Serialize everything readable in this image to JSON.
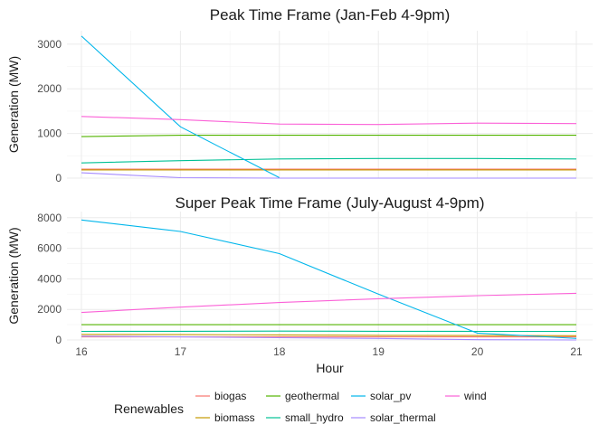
{
  "chart_data": [
    {
      "type": "line",
      "title": "Peak Time Frame (Jan-Feb 4-9pm)",
      "xlabel": "",
      "ylabel": "Generation (MW)",
      "xlim": [
        16,
        21
      ],
      "ylim": [
        0,
        3300
      ],
      "yticks": [
        0,
        1000,
        2000,
        3000
      ],
      "show_x_tick_labels": false,
      "grid": true,
      "series": [
        {
          "name": "biogas",
          "x": [
            16,
            17,
            18,
            19,
            20,
            21
          ],
          "values": [
            200,
            200,
            200,
            200,
            200,
            200
          ]
        },
        {
          "name": "biomass",
          "x": [
            16,
            17,
            18,
            19,
            20,
            21
          ],
          "values": [
            185,
            185,
            185,
            185,
            185,
            185
          ]
        },
        {
          "name": "geothermal",
          "x": [
            16,
            17,
            18,
            19,
            20,
            21
          ],
          "values": [
            930,
            960,
            960,
            960,
            960,
            960
          ]
        },
        {
          "name": "small_hydro",
          "x": [
            16,
            17,
            18,
            19,
            20,
            21
          ],
          "values": [
            340,
            390,
            430,
            440,
            440,
            430
          ]
        },
        {
          "name": "solar_pv",
          "x": [
            16,
            17,
            18
          ],
          "values": [
            3180,
            1150,
            10
          ]
        },
        {
          "name": "solar_thermal",
          "x": [
            16,
            17,
            18,
            19,
            20,
            21
          ],
          "values": [
            120,
            10,
            0,
            0,
            0,
            0
          ]
        },
        {
          "name": "wind",
          "x": [
            16,
            17,
            18,
            19,
            20,
            21
          ],
          "values": [
            1380,
            1310,
            1210,
            1200,
            1230,
            1220
          ]
        }
      ]
    },
    {
      "type": "line",
      "title": "Super Peak Time Frame (July-August 4-9pm)",
      "xlabel": "Hour",
      "ylabel": "Generation (MW)",
      "xlim": [
        16,
        21
      ],
      "ylim": [
        0,
        8400
      ],
      "yticks": [
        0,
        2000,
        4000,
        6000,
        8000
      ],
      "xticks": [
        16,
        17,
        18,
        19,
        20,
        21
      ],
      "show_x_tick_labels": true,
      "grid": true,
      "series": [
        {
          "name": "biogas",
          "x": [
            16,
            17,
            18,
            19,
            20,
            21
          ],
          "values": [
            200,
            200,
            200,
            200,
            200,
            200
          ]
        },
        {
          "name": "biomass",
          "x": [
            16,
            17,
            18,
            19,
            20,
            21
          ],
          "values": [
            360,
            350,
            330,
            300,
            290,
            280
          ]
        },
        {
          "name": "geothermal",
          "x": [
            16,
            17,
            18,
            19,
            20,
            21
          ],
          "values": [
            1000,
            1000,
            1000,
            1000,
            1000,
            1000
          ]
        },
        {
          "name": "small_hydro",
          "x": [
            16,
            17,
            18,
            19,
            20,
            21
          ],
          "values": [
            560,
            570,
            580,
            570,
            560,
            560
          ]
        },
        {
          "name": "solar_pv",
          "x": [
            16,
            17,
            18,
            19,
            20,
            21
          ],
          "values": [
            7850,
            7100,
            5650,
            3000,
            450,
            100
          ]
        },
        {
          "name": "solar_thermal",
          "x": [
            16,
            17,
            18,
            19,
            20,
            21
          ],
          "values": [
            250,
            200,
            150,
            100,
            20,
            0
          ]
        },
        {
          "name": "wind",
          "x": [
            16,
            17,
            18,
            19,
            20,
            21
          ],
          "values": [
            1800,
            2150,
            2450,
            2700,
            2900,
            3050
          ]
        }
      ]
    }
  ],
  "legend": {
    "title": "Renewables",
    "position": "bottom",
    "items": [
      {
        "name": "biogas",
        "color": "#F8766D"
      },
      {
        "name": "biomass",
        "color": "#C49A00"
      },
      {
        "name": "geothermal",
        "color": "#53B400"
      },
      {
        "name": "small_hydro",
        "color": "#00C094"
      },
      {
        "name": "solar_pv",
        "color": "#00B6EB"
      },
      {
        "name": "solar_thermal",
        "color": "#A58AFF"
      },
      {
        "name": "wind",
        "color": "#FB61D7"
      }
    ]
  }
}
